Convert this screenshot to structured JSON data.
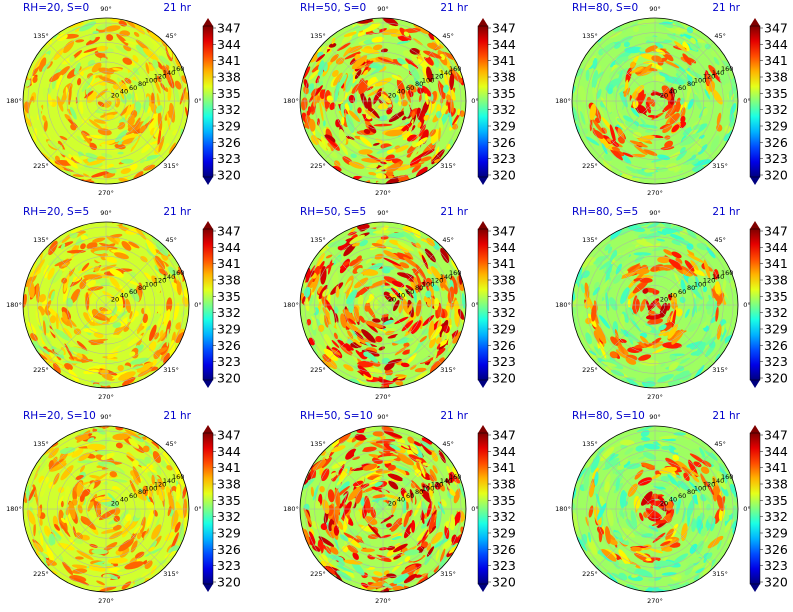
{
  "figure": {
    "time_label": "21 hr",
    "colorbar_ticks": [
      "347",
      "344",
      "341",
      "338",
      "335",
      "332",
      "329",
      "326",
      "323",
      "320"
    ],
    "angle_labels": [
      "0°",
      "45°",
      "90°",
      "135°",
      "180°",
      "225°",
      "270°",
      "315°"
    ],
    "radial_labels": [
      "20",
      "40",
      "60",
      "80",
      "100",
      "120",
      "140",
      "160"
    ],
    "title_color": "#0000cc"
  },
  "chart_data": [
    {
      "type": "heatmap",
      "projection": "polar",
      "title": "RH=20, S=0",
      "radial_ticks": [
        20,
        40,
        60,
        80,
        100,
        120,
        140,
        160
      ],
      "rlim": [
        0,
        170
      ],
      "angular_ticks_deg": [
        0,
        45,
        90,
        135,
        180,
        225,
        270,
        315
      ],
      "colorbar": {
        "min": 320,
        "max": 347,
        "ticks": [
          320,
          323,
          326,
          329,
          332,
          335,
          338,
          341,
          344,
          347
        ],
        "colormap": "jet"
      }
    },
    {
      "type": "heatmap",
      "projection": "polar",
      "title": "RH=50, S=0",
      "radial_ticks": [
        20,
        40,
        60,
        80,
        100,
        120,
        140,
        160
      ],
      "rlim": [
        0,
        170
      ],
      "angular_ticks_deg": [
        0,
        45,
        90,
        135,
        180,
        225,
        270,
        315
      ],
      "colorbar": {
        "min": 320,
        "max": 347,
        "ticks": [
          320,
          323,
          326,
          329,
          332,
          335,
          338,
          341,
          344,
          347
        ],
        "colormap": "jet"
      }
    },
    {
      "type": "heatmap",
      "projection": "polar",
      "title": "RH=80, S=0",
      "radial_ticks": [
        20,
        40,
        60,
        80,
        100,
        120,
        140,
        160
      ],
      "rlim": [
        0,
        170
      ],
      "angular_ticks_deg": [
        0,
        45,
        90,
        135,
        180,
        225,
        270,
        315
      ],
      "colorbar": {
        "min": 320,
        "max": 347,
        "ticks": [
          320,
          323,
          326,
          329,
          332,
          335,
          338,
          341,
          344,
          347
        ],
        "colormap": "jet"
      }
    },
    {
      "type": "heatmap",
      "projection": "polar",
      "title": "RH=20, S=5",
      "radial_ticks": [
        20,
        40,
        60,
        80,
        100,
        120,
        140,
        160
      ],
      "rlim": [
        0,
        170
      ],
      "angular_ticks_deg": [
        0,
        45,
        90,
        135,
        180,
        225,
        270,
        315
      ],
      "colorbar": {
        "min": 320,
        "max": 347,
        "ticks": [
          320,
          323,
          326,
          329,
          332,
          335,
          338,
          341,
          344,
          347
        ],
        "colormap": "jet"
      }
    },
    {
      "type": "heatmap",
      "projection": "polar",
      "title": "RH=50, S=5",
      "radial_ticks": [
        20,
        40,
        60,
        80,
        100,
        120,
        140,
        160
      ],
      "rlim": [
        0,
        170
      ],
      "angular_ticks_deg": [
        0,
        45,
        90,
        135,
        180,
        225,
        270,
        315
      ],
      "colorbar": {
        "min": 320,
        "max": 347,
        "ticks": [
          320,
          323,
          326,
          329,
          332,
          335,
          338,
          341,
          344,
          347
        ],
        "colormap": "jet"
      }
    },
    {
      "type": "heatmap",
      "projection": "polar",
      "title": "RH=80, S=5",
      "radial_ticks": [
        20,
        40,
        60,
        80,
        100,
        120,
        140,
        160
      ],
      "rlim": [
        0,
        170
      ],
      "angular_ticks_deg": [
        0,
        45,
        90,
        135,
        180,
        225,
        270,
        315
      ],
      "colorbar": {
        "min": 320,
        "max": 347,
        "ticks": [
          320,
          323,
          326,
          329,
          332,
          335,
          338,
          341,
          344,
          347
        ],
        "colormap": "jet"
      }
    },
    {
      "type": "heatmap",
      "projection": "polar",
      "title": "RH=20, S=10",
      "radial_ticks": [
        20,
        40,
        60,
        80,
        100,
        120,
        140,
        160
      ],
      "rlim": [
        0,
        170
      ],
      "angular_ticks_deg": [
        0,
        45,
        90,
        135,
        180,
        225,
        270,
        315
      ],
      "colorbar": {
        "min": 320,
        "max": 347,
        "ticks": [
          320,
          323,
          326,
          329,
          332,
          335,
          338,
          341,
          344,
          347
        ],
        "colormap": "jet"
      }
    },
    {
      "type": "heatmap",
      "projection": "polar",
      "title": "RH=50, S=10",
      "radial_ticks": [
        20,
        40,
        60,
        80,
        100,
        120,
        140,
        160
      ],
      "rlim": [
        0,
        170
      ],
      "angular_ticks_deg": [
        0,
        45,
        90,
        135,
        180,
        225,
        270,
        315
      ],
      "colorbar": {
        "min": 320,
        "max": 347,
        "ticks": [
          320,
          323,
          326,
          329,
          332,
          335,
          338,
          341,
          344,
          347
        ],
        "colormap": "jet"
      }
    },
    {
      "type": "heatmap",
      "projection": "polar",
      "title": "RH=80, S=10",
      "radial_ticks": [
        20,
        40,
        60,
        80,
        100,
        120,
        140,
        160
      ],
      "rlim": [
        0,
        170
      ],
      "angular_ticks_deg": [
        0,
        45,
        90,
        135,
        180,
        225,
        270,
        315
      ],
      "colorbar": {
        "min": 320,
        "max": 347,
        "ticks": [
          320,
          323,
          326,
          329,
          332,
          335,
          338,
          341,
          344,
          347
        ],
        "colormap": "jet"
      }
    }
  ]
}
